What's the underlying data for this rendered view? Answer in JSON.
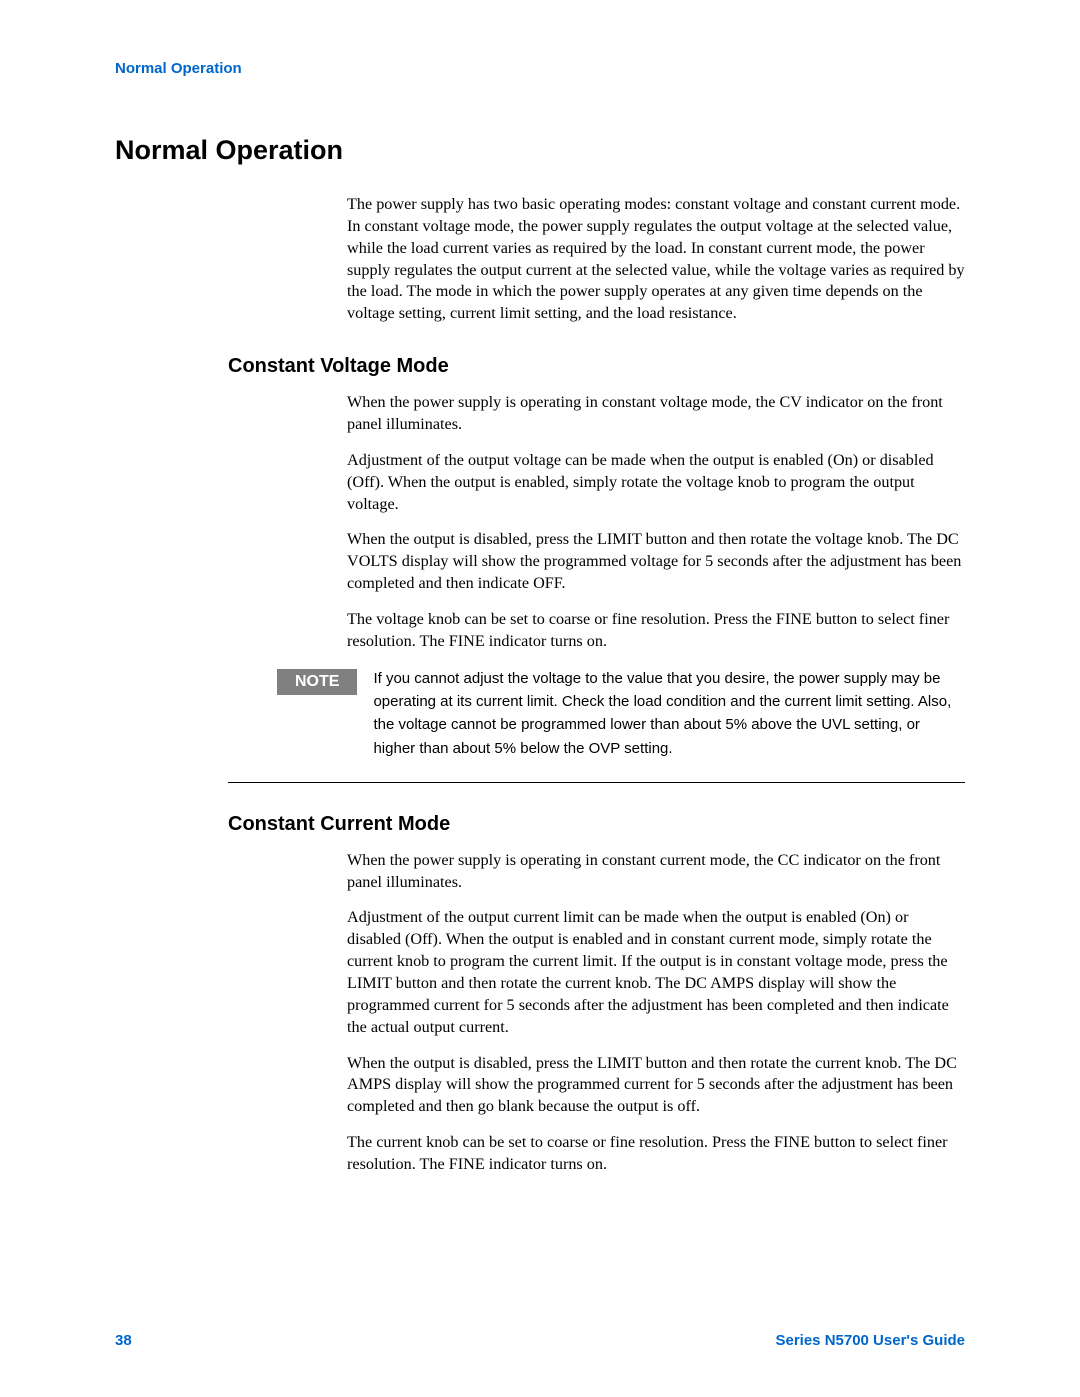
{
  "header": {
    "running_title": "Normal Operation"
  },
  "main": {
    "title": "Normal Operation",
    "intro": "The power supply has two basic operating modes: constant voltage and constant current mode. In constant voltage mode, the power supply regulates the output voltage at the selected value, while the load current varies as required by the load. In constant current mode, the power supply regulates the output current at the selected value, while the voltage varies as required by the load. The mode in which the power supply operates at any given time depends on the voltage setting, current limit setting, and the load resistance.",
    "sections": [
      {
        "heading": "Constant Voltage Mode",
        "paragraphs": [
          "When the power supply is operating in constant voltage mode, the CV indicator on the front panel illuminates.",
          "Adjustment of the output voltage can be made when the output is enabled (On) or disabled (Off). When the output is enabled, simply rotate the voltage knob to program the output voltage.",
          "When the output is disabled, press the LIMIT button and then rotate the voltage knob. The DC VOLTS display will show the programmed voltage for 5 seconds after the adjustment has been completed and then indicate OFF.",
          "The voltage knob can be set to coarse or fine resolution. Press the FINE button to select finer resolution. The FINE indicator turns on."
        ],
        "note_label": "NOTE",
        "note_text": "If you cannot adjust the voltage to the value that you desire, the power supply may be operating at its current limit. Check the load condition and the current limit setting. Also, the voltage cannot be programmed lower than about 5% above the UVL setting, or higher than about 5% below the OVP setting."
      },
      {
        "heading": "Constant Current Mode",
        "paragraphs": [
          "When the power supply is operating in constant current mode, the CC indicator on the front panel illuminates.",
          "Adjustment of the output current limit can be made when the output is enabled (On) or disabled (Off). When the output is enabled and in constant current mode, simply rotate the current knob to program the current limit. If the output is in constant voltage mode, press the LIMIT button and then rotate the current knob. The DC AMPS display will show the programmed current for 5 seconds after the adjustment has been completed and then indicate the actual output current.",
          "When the output is disabled, press the LIMIT button and then rotate the current knob. The DC AMPS display will show the programmed current for 5 seconds after the adjustment has been completed and then go blank because the output is off.",
          "The current knob can be set to coarse or fine resolution. Press the FINE button to select finer resolution. The FINE indicator turns on."
        ]
      }
    ]
  },
  "footer": {
    "page_number": "38",
    "guide_title": "Series N5700 User's Guide"
  },
  "colors": {
    "link_blue": "#0066cc",
    "note_gray": "#808080",
    "text_black": "#000000",
    "background": "#ffffff"
  },
  "typography": {
    "heading_font": "Arial",
    "body_font": "Century Schoolbook",
    "main_heading_size": 27,
    "sub_heading_size": 20,
    "body_size": 16,
    "note_size": 15,
    "header_footer_size": 15
  }
}
